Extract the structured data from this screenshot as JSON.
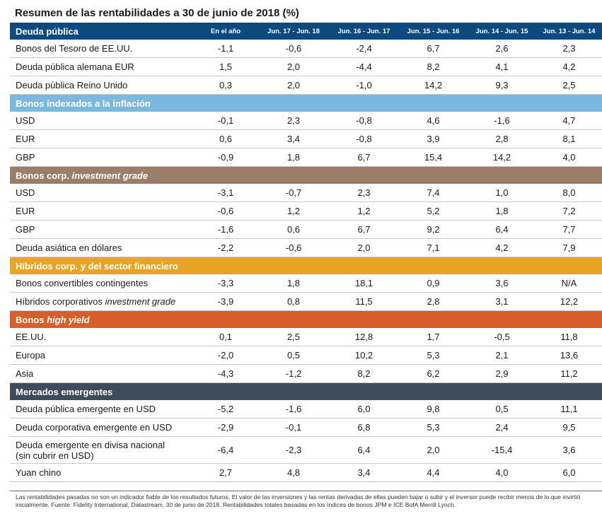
{
  "title": "Resumen de las rentabilidades a 30 de junio de 2018 (%)",
  "columns": [
    "En el año",
    "Jun. 17 - Jun. 18",
    "Jun. 16 - Jun. 17",
    "Jun. 15 - Jun. 16",
    "Jun. 14 - Jun. 15",
    "Jun. 13 - Jun. 14"
  ],
  "sections": [
    {
      "title": "Deuda pública",
      "title_em": "",
      "color": "#0d4a7e",
      "rows": [
        {
          "label": "Bonos del Tesoro de EE.UU.",
          "label_em": "",
          "values": [
            "-1,1",
            "-0,6",
            "-2,4",
            "6,7",
            "2,6",
            "2,3"
          ]
        },
        {
          "label": "Deuda pública alemana EUR",
          "label_em": "",
          "values": [
            "1,5",
            "2,0",
            "-4,4",
            "8,2",
            "4,1",
            "4,2"
          ]
        },
        {
          "label": "Deuda pública Reino Unido",
          "label_em": "",
          "values": [
            "0,3",
            "2,0",
            "-1,0",
            "14,2",
            "9,3",
            "2,5"
          ]
        }
      ]
    },
    {
      "title": "Bonos indexados a la inflación",
      "title_em": "",
      "color": "#7bb8de",
      "rows": [
        {
          "label": "USD",
          "label_em": "",
          "values": [
            "-0,1",
            "2,3",
            "-0,8",
            "4,6",
            "-1,6",
            "4,7"
          ]
        },
        {
          "label": "EUR",
          "label_em": "",
          "values": [
            "0,6",
            "3,4",
            "-0,8",
            "3,9",
            "2,8",
            "8,1"
          ]
        },
        {
          "label": "GBP",
          "label_em": "",
          "values": [
            "-0,9",
            "1,8",
            "6,7",
            "15,4",
            "14,2",
            "4,0"
          ]
        }
      ]
    },
    {
      "title": "Bonos corp. ",
      "title_em": "investment grade",
      "color": "#9a7e6a",
      "rows": [
        {
          "label": "USD",
          "label_em": "",
          "values": [
            "-3,1",
            "-0,7",
            "2,3",
            "7,4",
            "1,0",
            "8,0"
          ]
        },
        {
          "label": "EUR",
          "label_em": "",
          "values": [
            "-0,6",
            "1,2",
            "1,2",
            "5,2",
            "1,8",
            "7,2"
          ]
        },
        {
          "label": "GBP",
          "label_em": "",
          "values": [
            "-1,6",
            "0,6",
            "6,7",
            "9,2",
            "6,4",
            "7,7"
          ]
        },
        {
          "label": "Deuda asiática en dólares",
          "label_em": "",
          "values": [
            "-2,2",
            "-0,6",
            "2,0",
            "7,1",
            "4,2",
            "7,9"
          ]
        }
      ]
    },
    {
      "title": "Híbridos corp. y del sector financiero",
      "title_em": "",
      "color": "#e8a424",
      "rows": [
        {
          "label": "Bonos convertibles contingentes",
          "label_em": "",
          "values": [
            "-3,3",
            "1,8",
            "18,1",
            "0,9",
            "3,6",
            "N/A"
          ]
        },
        {
          "label": "Híbridos corporativos ",
          "label_em": "investment grade",
          "values": [
            "-3,9",
            "0,8",
            "11,5",
            "2,8",
            "3,1",
            "12,2"
          ]
        }
      ]
    },
    {
      "title": "Bonos ",
      "title_em": "high yield",
      "color": "#d65f2a",
      "rows": [
        {
          "label": "EE.UU.",
          "label_em": "",
          "values": [
            "0,1",
            "2,5",
            "12,8",
            "1,7",
            "-0,5",
            "11,8"
          ]
        },
        {
          "label": "Europa",
          "label_em": "",
          "values": [
            "-2,0",
            "0,5",
            "10,2",
            "5,3",
            "2,1",
            "13,6"
          ]
        },
        {
          "label": "Asia",
          "label_em": "",
          "values": [
            "-4,3",
            "-1,2",
            "8,2",
            "6,2",
            "2,9",
            "11,2"
          ]
        }
      ]
    },
    {
      "title": "Mercados emergentes",
      "title_em": "",
      "color": "#3e4b5a",
      "rows": [
        {
          "label": "Deuda pública emergente en USD",
          "label_em": "",
          "values": [
            "-5,2",
            "-1,6",
            "6,0",
            "9,8",
            "0,5",
            "11,1"
          ]
        },
        {
          "label": "Deuda corporativa emergente en USD",
          "label_em": "",
          "values": [
            "-2,9",
            "-0,1",
            "6,8",
            "5,3",
            "2,4",
            "9,5"
          ]
        },
        {
          "label": "Deuda emergente en divisa nacional",
          "label2": "(sin cubrir en USD)",
          "label_em": "",
          "values": [
            "-6,4",
            "-2,3",
            "6,4",
            "2,0",
            "-15,4",
            "3,6"
          ]
        },
        {
          "label": "Yuan chino",
          "label_em": "",
          "values": [
            "2,7",
            "4,8",
            "3,4",
            "4,4",
            "4,0",
            "6,0"
          ]
        }
      ]
    }
  ],
  "footer": "Las rentabilidades pasadas no son un indicador fiable de los resultados futuros. El valor de las inversiones y las rentas derivadas de ellas pueden bajar o subir y el inversor puede recibir menos de lo que invirtió inicialmente. Fuente: Fidelity International, Datastream, 30 de junio de 2018. Rentabilidades totales basadas en los índices de bonos JPM e ICE BofA Merrill Lynch."
}
